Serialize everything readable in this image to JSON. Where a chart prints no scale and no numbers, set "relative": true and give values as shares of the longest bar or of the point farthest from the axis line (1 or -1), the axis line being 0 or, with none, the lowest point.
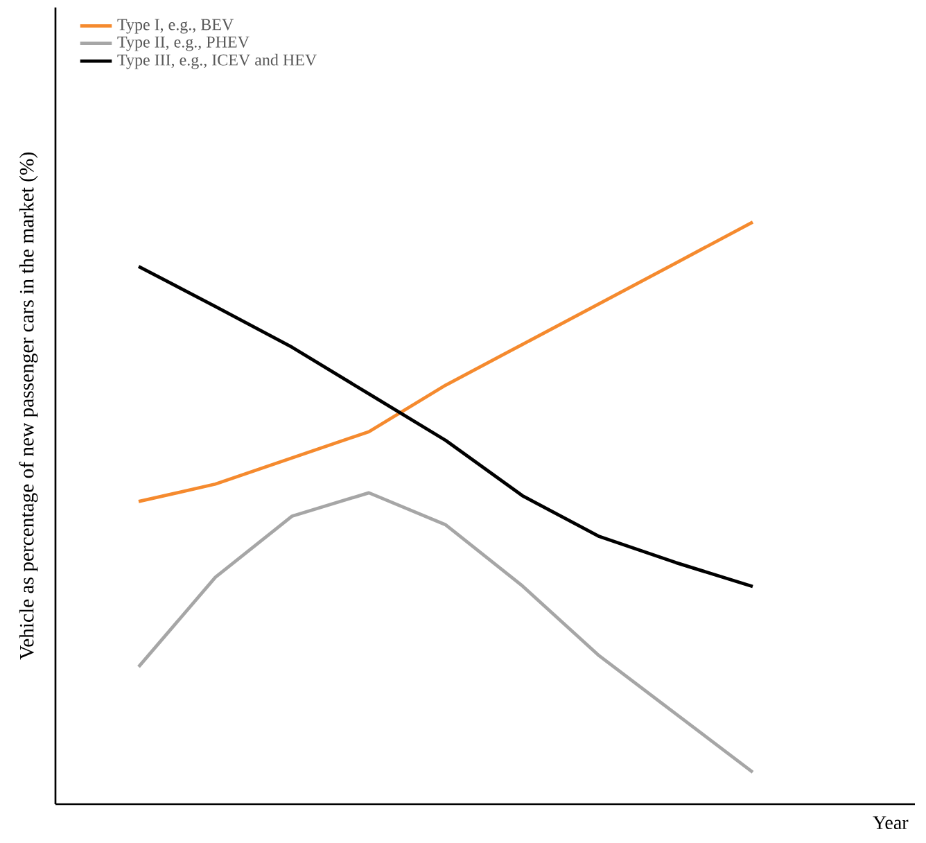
{
  "chart_data": {
    "type": "line",
    "relative": true,
    "xlabel": "Year",
    "ylabel": "Vehicle as percentage of  new passenger cars in the market (%)",
    "legend": "top left",
    "categories": [
      null,
      null,
      null,
      null,
      null,
      null,
      null,
      null,
      null
    ],
    "series": [
      {
        "name": "Type I, e.g., BEV",
        "color": "#f58a2e",
        "values": [
          0.52,
          0.55,
          0.595,
          0.64,
          0.72,
          0.79,
          0.86,
          0.93,
          1.0
        ]
      },
      {
        "name": "Type II, e.g., PHEV",
        "color": "#a6a6a6",
        "values": [
          0.236,
          0.39,
          0.495,
          0.535,
          0.48,
          0.375,
          0.255,
          0.155,
          0.055
        ]
      },
      {
        "name": "Type III, e.g., ICEV and HEV",
        "color": "#000000",
        "values": [
          0.924,
          0.855,
          0.785,
          0.705,
          0.625,
          0.53,
          0.46,
          0.415,
          0.374
        ]
      }
    ]
  }
}
